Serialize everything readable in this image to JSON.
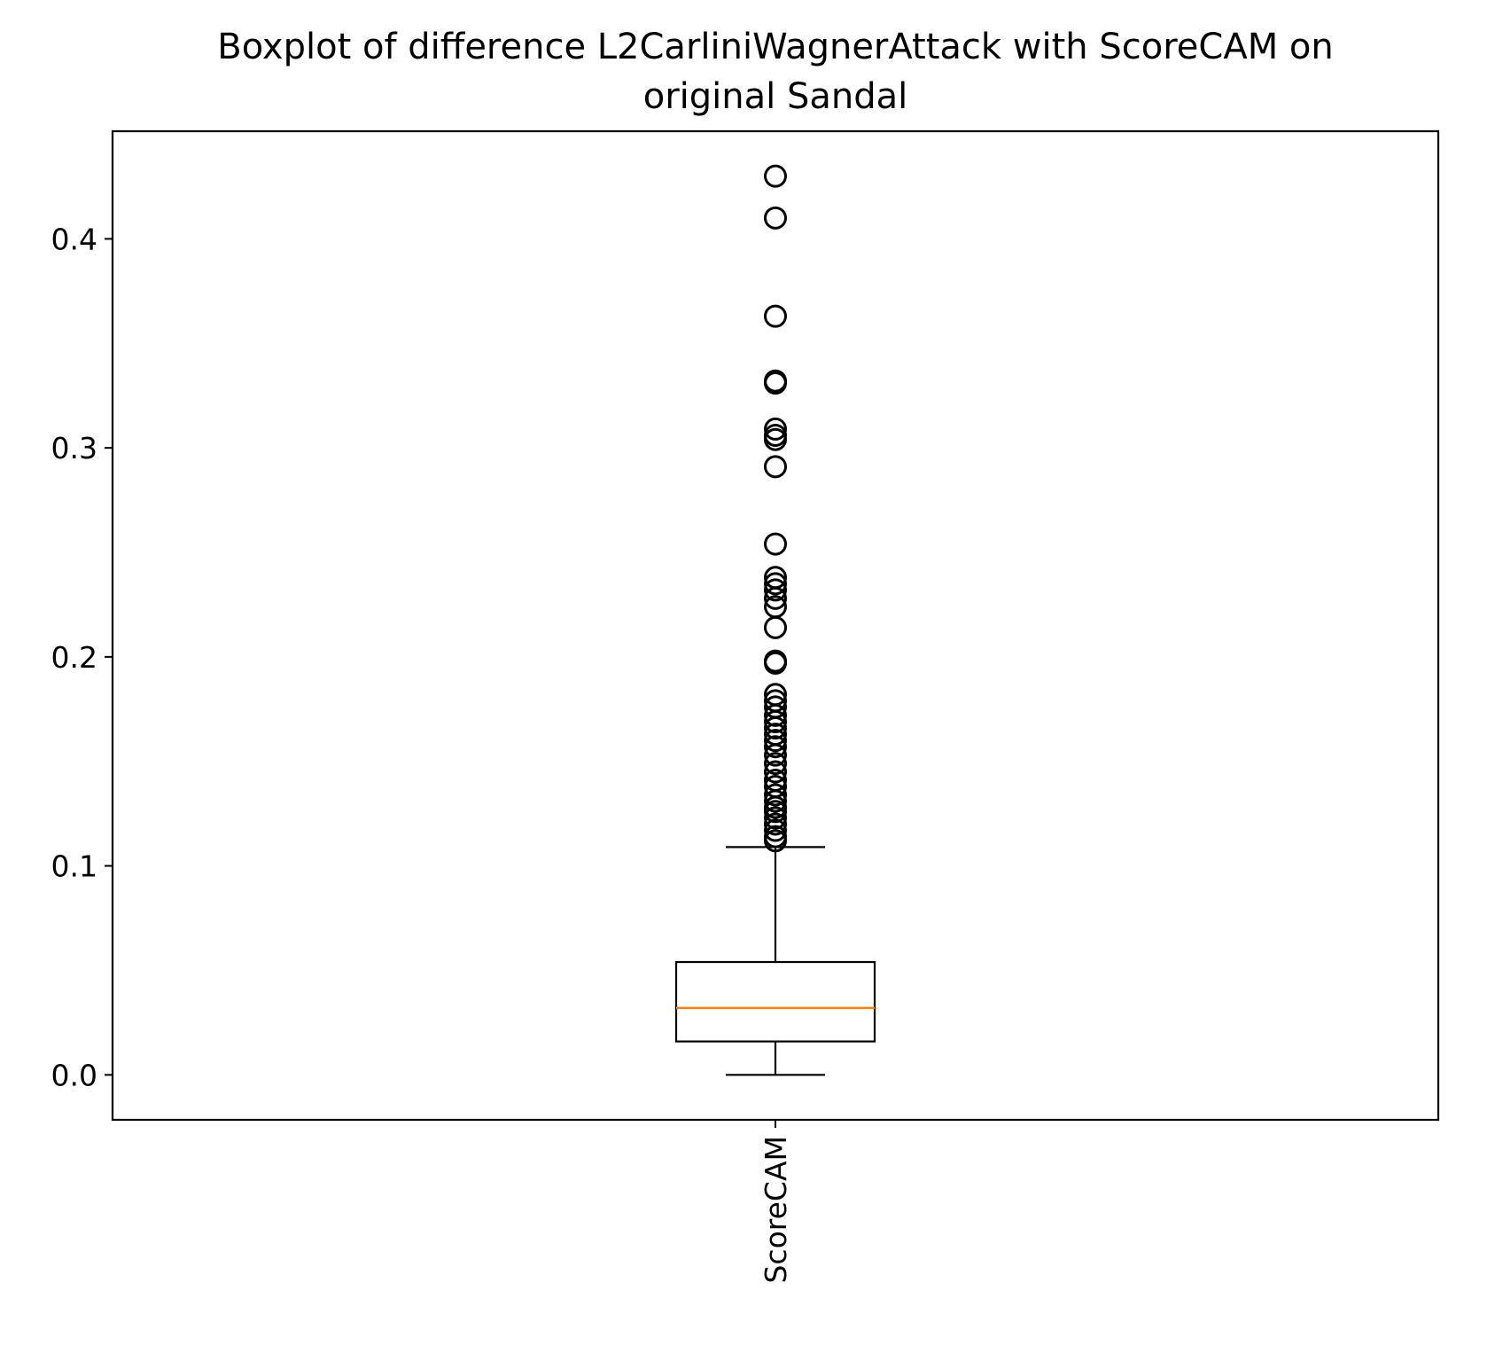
{
  "chart_data": {
    "type": "boxplot",
    "title": "Boxplot of difference L2CarliniWagnerAttack with ScoreCAM on original Sandal",
    "title_lines": [
      "Boxplot of difference L2CarliniWagnerAttack with ScoreCAM on",
      "original Sandal"
    ],
    "xlabel": "",
    "ylabel": "",
    "ylim": [
      -0.0215,
      0.4515
    ],
    "yticks": [
      0.0,
      0.1,
      0.2,
      0.3,
      0.4
    ],
    "ytick_labels": [
      "0.0",
      "0.1",
      "0.2",
      "0.3",
      "0.4"
    ],
    "grid": false,
    "categories": [
      "ScoreCAM"
    ],
    "boxes": [
      {
        "label": "ScoreCAM",
        "whisker_low": 0.0,
        "q1": 0.016,
        "median": 0.032,
        "q3": 0.054,
        "whisker_high": 0.109,
        "outliers": [
          0.112,
          0.114,
          0.117,
          0.12,
          0.123,
          0.126,
          0.128,
          0.131,
          0.134,
          0.138,
          0.141,
          0.145,
          0.149,
          0.153,
          0.157,
          0.16,
          0.163,
          0.166,
          0.169,
          0.172,
          0.176,
          0.179,
          0.182,
          0.197,
          0.198,
          0.214,
          0.224,
          0.228,
          0.232,
          0.235,
          0.238,
          0.254,
          0.291,
          0.304,
          0.306,
          0.309,
          0.331,
          0.332,
          0.363,
          0.41,
          0.43
        ]
      }
    ],
    "colors": {
      "box": "#000000",
      "median": "#ff7f0e",
      "outlier_edge": "#000000"
    }
  }
}
